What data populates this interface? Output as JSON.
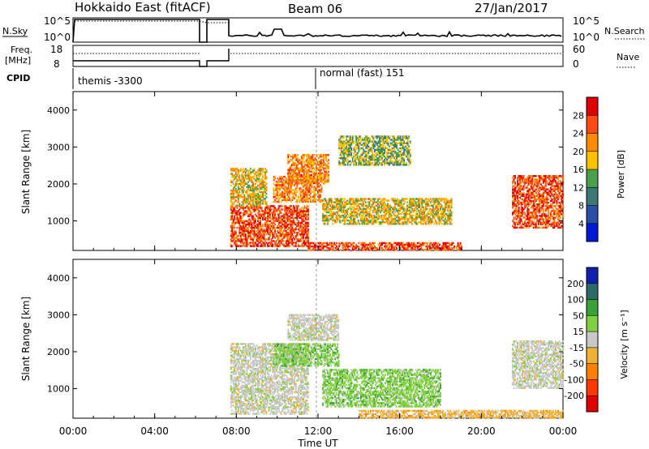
{
  "header": {
    "station": "Hokkaido East (fitACF)",
    "beam": "Beam 06",
    "date": "27/Jan/2017"
  },
  "sky_panel": {
    "label": "N.Sky",
    "left_ticks": [
      "10^5",
      "10^0"
    ],
    "right_ticks": [
      "10^5",
      "10^0"
    ],
    "right_label": "N.Search"
  },
  "freq_panel": {
    "label_line1": "Freq.",
    "label_line2": "[MHz]",
    "left_ticks": [
      "18",
      "8"
    ],
    "right_ticks": [
      "60",
      "0"
    ],
    "right_label": "Nave"
  },
  "cpid": {
    "label": "CPID",
    "mode1": "themis -3300",
    "mode2": "normal (fast) 151"
  },
  "chart_data": [
    {
      "type": "heatmap",
      "panel": "power",
      "ylabel": "Slant Range [km]",
      "yticks": [
        "4000",
        "3000",
        "2000",
        "1000"
      ],
      "ylim": [
        200,
        4500
      ],
      "xlim": [
        0,
        24
      ],
      "colorbar_label": "Power [dB]",
      "colorbar_ticks": [
        "28",
        "24",
        "20",
        "16",
        "12",
        "8",
        "4"
      ],
      "colorbar_colors": [
        "#e00000",
        "#ff4a10",
        "#ff8c00",
        "#ffc000",
        "#4aa04a",
        "#3c7878",
        "#2850a8",
        "#0018d8"
      ],
      "regions": [
        {
          "t0": 7.7,
          "t1": 11.5,
          "r0": 300,
          "r1": 1400,
          "level": 7
        },
        {
          "t0": 7.7,
          "t1": 9.5,
          "r0": 1400,
          "r1": 2400,
          "level": 5
        },
        {
          "t0": 9.8,
          "t1": 12.2,
          "r0": 1500,
          "r1": 2200,
          "level": 6
        },
        {
          "t0": 10.5,
          "t1": 12.5,
          "r0": 2000,
          "r1": 2800,
          "level": 6
        },
        {
          "t0": 12.2,
          "t1": 18.5,
          "r0": 900,
          "r1": 1600,
          "level": 5
        },
        {
          "t0": 11.5,
          "t1": 19.0,
          "r0": 200,
          "r1": 400,
          "level": 7
        },
        {
          "t0": 21.5,
          "t1": 24.0,
          "r0": 800,
          "r1": 2200,
          "level": 7
        },
        {
          "t0": 13.0,
          "t1": 16.5,
          "r0": 2500,
          "r1": 3300,
          "level": 4
        }
      ]
    },
    {
      "type": "heatmap",
      "panel": "velocity",
      "ylabel": "Slant Range [km]",
      "yticks": [
        "4000",
        "3000",
        "2000",
        "1000"
      ],
      "ylim": [
        200,
        4500
      ],
      "xlim": [
        0,
        24
      ],
      "colorbar_label": "Velocity [m s⁻¹]",
      "colorbar_ticks": [
        "200",
        "100",
        "50",
        "15",
        "-15",
        "-50",
        "-100",
        "-200"
      ],
      "colorbar_colors": [
        "#1020b0",
        "#2c6a6a",
        "#3aa03a",
        "#80d040",
        "#c8c8c8",
        "#f0b030",
        "#ff8000",
        "#ff3800",
        "#e00000"
      ],
      "regions": [
        {
          "t0": 7.7,
          "t1": 11.5,
          "r0": 300,
          "r1": 2200,
          "level": 4
        },
        {
          "t0": 9.8,
          "t1": 13.0,
          "r0": 1600,
          "r1": 2200,
          "level": 3
        },
        {
          "t0": 10.5,
          "t1": 13.0,
          "r0": 2300,
          "r1": 3000,
          "level": 4
        },
        {
          "t0": 12.2,
          "t1": 18.0,
          "r0": 500,
          "r1": 1500,
          "level": 3
        },
        {
          "t0": 14.0,
          "t1": 24.0,
          "r0": 200,
          "r1": 400,
          "level": 5
        },
        {
          "t0": 21.5,
          "t1": 24.0,
          "r0": 1000,
          "r1": 2300,
          "level": 4
        }
      ]
    }
  ],
  "x_axis": {
    "ticks": [
      "00:00",
      "04:00",
      "08:00",
      "12:00",
      "16:00",
      "20:00",
      "00:00"
    ],
    "label": "Time UT"
  }
}
